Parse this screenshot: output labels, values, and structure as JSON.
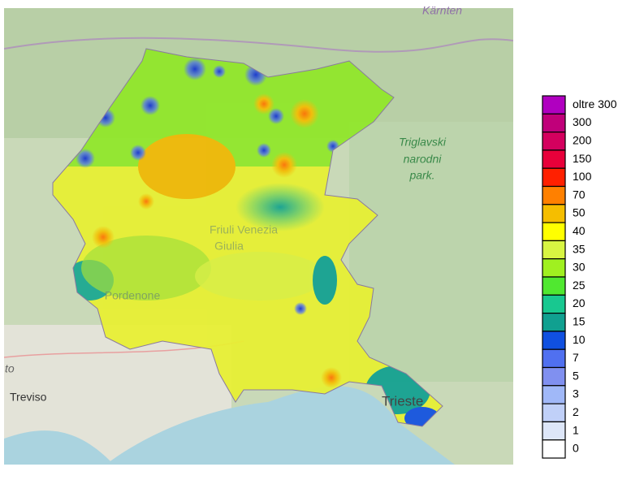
{
  "map": {
    "place_labels": {
      "carinthia": "Kärnten",
      "park": [
        "Triglavski",
        "narodni",
        "park."
      ],
      "region": [
        "Friuli Venezia",
        "Giulia"
      ],
      "pordenone": "Pordenone",
      "treviso": "Treviso",
      "trieste": "Trieste",
      "edge": "to"
    }
  },
  "legend": {
    "entries": [
      {
        "label": "oltre 300",
        "color": "#b000c0"
      },
      {
        "label": "300",
        "color": "#c0007a"
      },
      {
        "label": "200",
        "color": "#d4005e"
      },
      {
        "label": "150",
        "color": "#e8003a"
      },
      {
        "label": "100",
        "color": "#ff2000"
      },
      {
        "label": "70",
        "color": "#ff8000"
      },
      {
        "label": "50",
        "color": "#f5be00"
      },
      {
        "label": "40",
        "color": "#ffff00"
      },
      {
        "label": "35",
        "color": "#d8f542"
      },
      {
        "label": "30",
        "color": "#a0f020"
      },
      {
        "label": "25",
        "color": "#50e830"
      },
      {
        "label": "20",
        "color": "#18c890"
      },
      {
        "label": "15",
        "color": "#10a090"
      },
      {
        "label": "10",
        "color": "#1050e0"
      },
      {
        "label": "7",
        "color": "#5070f0"
      },
      {
        "label": "5",
        "color": "#8090f0"
      },
      {
        "label": "3",
        "color": "#a0b8f8"
      },
      {
        "label": "2",
        "color": "#c0d0f8"
      },
      {
        "label": "1",
        "color": "#dde6f8"
      },
      {
        "label": "0",
        "color": "#ffffff"
      }
    ]
  }
}
